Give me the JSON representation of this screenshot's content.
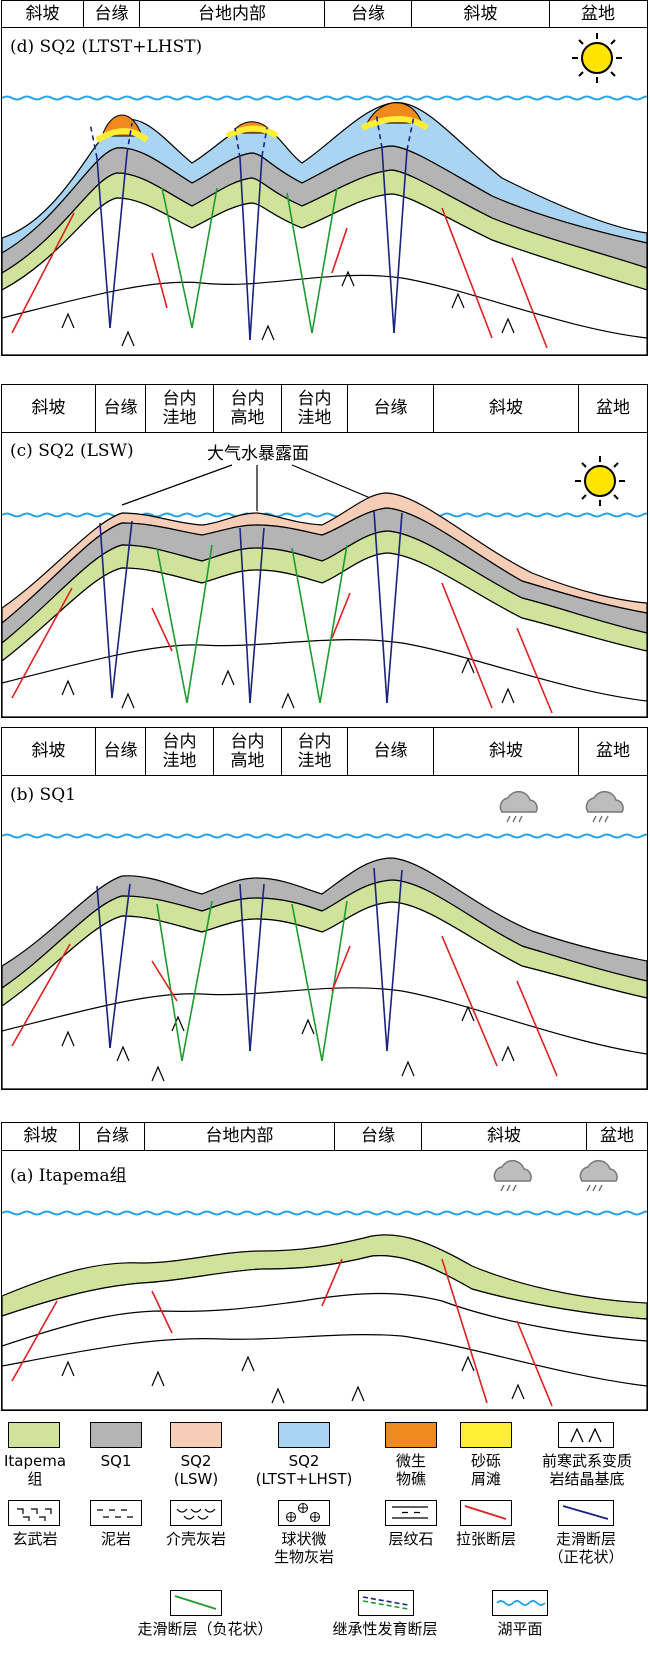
{
  "panels": {
    "d": {
      "title": "(d) SQ2 (LTST+LHST)",
      "zones": [
        "斜坡",
        "台缘",
        "台地内部",
        "台缘",
        "斜坡",
        "盆地"
      ]
    },
    "c": {
      "title": "(c) SQ2 (LSW)",
      "zones": [
        "斜坡",
        "台缘",
        "台内\n洼地",
        "台内\n高地",
        "台内\n洼地",
        "台缘",
        "斜坡",
        "盆地"
      ],
      "annotation": "大气水暴露面"
    },
    "b": {
      "title": "(b) SQ1",
      "zones": [
        "斜坡",
        "台缘",
        "台内\n洼地",
        "台内\n高地",
        "台内\n洼地",
        "台缘",
        "斜坡",
        "盆地"
      ]
    },
    "a": {
      "title": "(a) Itapema组",
      "zones": [
        "斜坡",
        "台缘",
        "台地内部",
        "台缘",
        "斜坡",
        "盆地"
      ]
    }
  },
  "legend": [
    {
      "key": "itapema",
      "label": "Itapema\n组",
      "color": "#cfe39a"
    },
    {
      "key": "sq1",
      "label": "SQ1",
      "color": "#b4b4b4"
    },
    {
      "key": "sq2_lsw",
      "label": "SQ2\n(LSW)",
      "color": "#f6cdb6"
    },
    {
      "key": "sq2_ltst",
      "label": "SQ2\n(LTST+LHST)",
      "color": "#a9d4f2"
    },
    {
      "key": "microbial_reef",
      "label": "微生\n物礁",
      "color": "#f08a1c"
    },
    {
      "key": "grain_shoal",
      "label": "砂砾\n屑滩",
      "color": "#ffee33"
    },
    {
      "key": "basement",
      "label": "前寒武系变质\n岩结晶基底",
      "icon": "caret"
    },
    {
      "key": "basalt",
      "label": "玄武岩",
      "icon": "basalt"
    },
    {
      "key": "mudstone",
      "label": "泥岩",
      "icon": "dash"
    },
    {
      "key": "coquina",
      "label": "介壳灰岩",
      "icon": "shell"
    },
    {
      "key": "spherulite",
      "label": "球状微\n生物灰岩",
      "icon": "circleplus"
    },
    {
      "key": "laminite",
      "label": "层纹石",
      "icon": "laminite"
    },
    {
      "key": "extensional_fault",
      "label": "拉张断层",
      "color": "#e02020",
      "icon": "line"
    },
    {
      "key": "strike_slip_positive",
      "label": "走滑断层\n（正花状）",
      "color": "#1a237e",
      "icon": "line"
    },
    {
      "key": "strike_slip_negative",
      "label": "走滑断层（负花状）",
      "color": "#1f9b2e",
      "icon": "line"
    },
    {
      "key": "inherited_fault",
      "label": "继承性发育断层",
      "icon": "inherit"
    },
    {
      "key": "lake_level",
      "label": "湖平面",
      "color": "#2aa4e6",
      "icon": "wave"
    }
  ]
}
